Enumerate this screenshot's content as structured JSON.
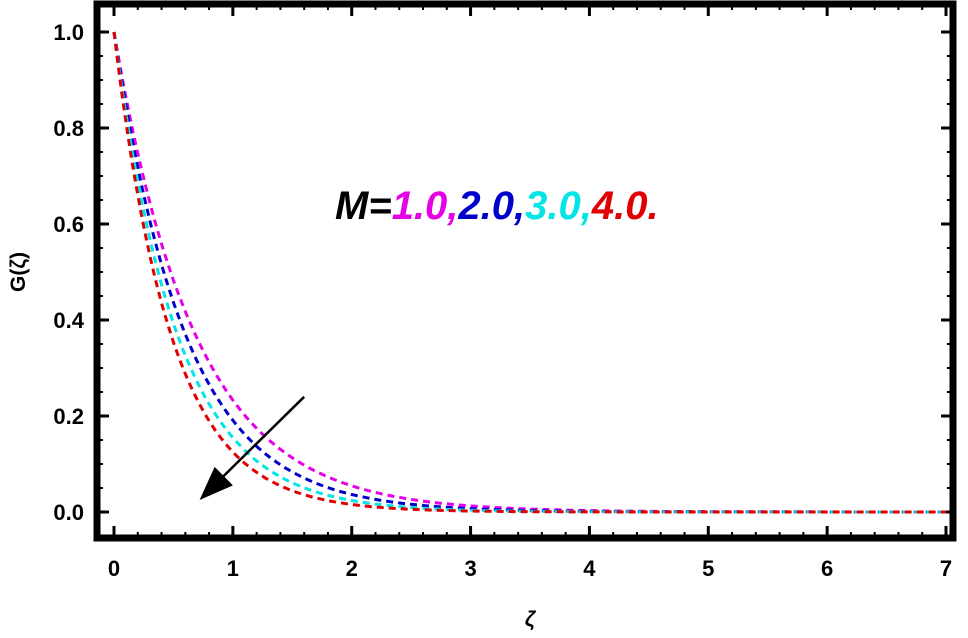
{
  "chart_data": {
    "type": "line",
    "xlabel": "ζ",
    "ylabel": "G(ζ)",
    "xlim": [
      -0.1,
      7.1
    ],
    "ylim": [
      -0.06,
      1.04
    ],
    "xticks": [
      0,
      1,
      2,
      3,
      4,
      5,
      6,
      7
    ],
    "xtick_labels": [
      "0",
      "1",
      "2",
      "3",
      "4",
      "5",
      "6",
      "7"
    ],
    "yticks": [
      0.0,
      0.2,
      0.4,
      0.6,
      0.8,
      1.0
    ],
    "ytick_labels": [
      "0.0",
      "0.2",
      "0.4",
      "0.6",
      "0.8",
      "1.0"
    ],
    "grid": false,
    "line_style": "dashed",
    "x": [
      0,
      0.25,
      0.5,
      0.75,
      1.0,
      1.25,
      1.5,
      2.0,
      2.5,
      3.0,
      3.5,
      4.0,
      5.0,
      6.0,
      7.0
    ],
    "series": [
      {
        "color": "#e600e6",
        "values": [
          1.0,
          0.695,
          0.483,
          0.336,
          0.233,
          0.162,
          0.113,
          0.0545,
          0.0263,
          0.0127,
          0.0061,
          0.003,
          0.0007,
          0.0002,
          0.0
        ]
      },
      {
        "color": "#0000cc",
        "values": [
          1.0,
          0.661,
          0.437,
          0.289,
          0.191,
          0.126,
          0.0835,
          0.0365,
          0.016,
          0.007,
          0.0031,
          0.0013,
          0.0003,
          0.0001,
          0.0
        ]
      },
      {
        "color": "#00e5e5",
        "values": [
          1.0,
          0.627,
          0.393,
          0.247,
          0.155,
          0.097,
          0.0608,
          0.0239,
          0.0094,
          0.0037,
          0.0015,
          0.0006,
          0.0001,
          0.0,
          0.0
        ]
      },
      {
        "color": "#e00000",
        "values": [
          1.0,
          0.595,
          0.354,
          0.211,
          0.125,
          0.0745,
          0.0443,
          0.0157,
          0.0056,
          0.002,
          0.0007,
          0.0002,
          0.0,
          0.0,
          0.0
        ]
      }
    ],
    "annotation": {
      "parts": [
        {
          "text": "M=",
          "color": "#000000"
        },
        {
          "text": "1.0,",
          "color": "#e600e6"
        },
        {
          "text": "2.0,",
          "color": "#0000cc"
        },
        {
          "text": "3.0,",
          "color": "#00e5e5"
        },
        {
          "text": "4.0.",
          "color": "#e00000"
        }
      ],
      "arrow": "from (1.6, 0.24) toward (0.7, 0.02): increasing M"
    }
  }
}
